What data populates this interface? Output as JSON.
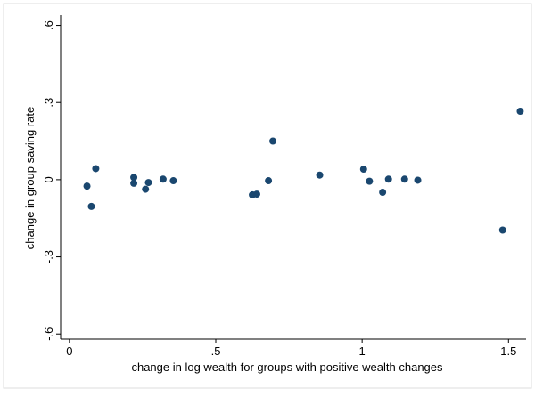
{
  "chart_data": {
    "type": "scatter",
    "title": "",
    "xlabel": "change in log wealth for groups with positive wealth changes",
    "ylabel": "change in group saving rate",
    "xlim": [
      -0.03,
      1.56
    ],
    "ylim": [
      -0.62,
      0.64
    ],
    "x_ticks": [
      {
        "value": 0,
        "label": "0"
      },
      {
        "value": 0.5,
        "label": ".5"
      },
      {
        "value": 1,
        "label": "1"
      },
      {
        "value": 1.5,
        "label": "1.5"
      }
    ],
    "y_ticks": [
      {
        "value": 0.6,
        "label": ".6"
      },
      {
        "value": 0.3,
        "label": ".3"
      },
      {
        "value": 0,
        "label": "0"
      },
      {
        "value": -0.3,
        "label": "-.3"
      },
      {
        "value": -0.6,
        "label": "-.6"
      }
    ],
    "grid": false,
    "marker_color": "#1a476f",
    "points": [
      {
        "x": 0.06,
        "y": -0.025
      },
      {
        "x": 0.075,
        "y": -0.104
      },
      {
        "x": 0.09,
        "y": 0.043
      },
      {
        "x": 0.22,
        "y": 0.009
      },
      {
        "x": 0.22,
        "y": -0.014
      },
      {
        "x": 0.26,
        "y": -0.037
      },
      {
        "x": 0.27,
        "y": -0.011
      },
      {
        "x": 0.32,
        "y": 0.002
      },
      {
        "x": 0.355,
        "y": -0.004
      },
      {
        "x": 0.625,
        "y": -0.059
      },
      {
        "x": 0.64,
        "y": -0.056
      },
      {
        "x": 0.68,
        "y": -0.004
      },
      {
        "x": 0.695,
        "y": 0.15
      },
      {
        "x": 0.855,
        "y": 0.018
      },
      {
        "x": 1.005,
        "y": 0.041
      },
      {
        "x": 1.025,
        "y": -0.006
      },
      {
        "x": 1.07,
        "y": -0.049
      },
      {
        "x": 1.09,
        "y": 0.002
      },
      {
        "x": 1.145,
        "y": 0.002
      },
      {
        "x": 1.19,
        "y": -0.002
      },
      {
        "x": 1.48,
        "y": -0.196
      },
      {
        "x": 1.54,
        "y": 0.266
      }
    ]
  }
}
